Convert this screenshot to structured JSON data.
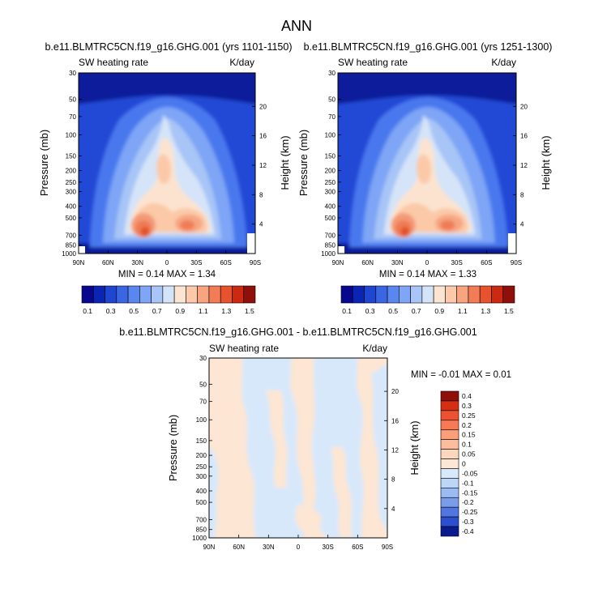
{
  "title": "ANN",
  "panels": [
    {
      "title": "b.e11.BLMTRC5CN.f19_g16.GHG.001 (yrs 1101-1150)",
      "left_label": "SW heating rate",
      "right_label": "K/day",
      "ylabel": "Pressure (mb)",
      "ylabel2": "Height (km)",
      "minmax": "MIN =  0.14  MAX =  1.34"
    },
    {
      "title": "b.e11.BLMTRC5CN.f19_g16.GHG.001 (yrs 1251-1300)",
      "left_label": "SW heating rate",
      "right_label": "K/day",
      "ylabel": "Pressure (mb)",
      "ylabel2": "Height (km)",
      "minmax": "MIN =  0.14  MAX =  1.33"
    },
    {
      "title": "b.e11.BLMTRC5CN.f19_g16.GHG.001 - b.e11.BLMTRC5CN.f19_g16.GHG.001",
      "left_label": "SW heating rate",
      "right_label": "K/day",
      "ylabel": "Pressure (mb)",
      "ylabel2": "Height (km)",
      "minmax": "MIN = -0.01  MAX =  0.01"
    }
  ],
  "chart_data": [
    {
      "type": "heatmap",
      "title": "b.e11.BLMTRC5CN.f19_g16.GHG.001 (yrs 1101-1150)",
      "variable": "SW heating rate",
      "units": "K/day",
      "xlabel": "",
      "ylabel": "Pressure (mb)",
      "ylabel_right": "Height (km)",
      "x_ticks": [
        "90N",
        "60N",
        "30N",
        "0",
        "30S",
        "60S",
        "90S"
      ],
      "x_tick_values": [
        90,
        60,
        30,
        0,
        -30,
        -60,
        -90
      ],
      "y_ticks": [
        30,
        50,
        70,
        100,
        150,
        200,
        250,
        300,
        400,
        500,
        700,
        850,
        1000
      ],
      "y_ticks_right": [
        20,
        16,
        12,
        8,
        4
      ],
      "ylim": [
        30,
        1000
      ],
      "min": 0.14,
      "max": 1.34,
      "colorbar_levels": [
        0.1,
        0.2,
        0.3,
        0.4,
        0.5,
        0.6,
        0.7,
        0.8,
        0.9,
        1.0,
        1.1,
        1.2,
        1.3,
        1.4,
        1.5
      ],
      "colorbar_labels": [
        "0.1",
        "0.3",
        "0.5",
        "0.7",
        "0.9",
        "1.1",
        "1.3",
        "1.5"
      ]
    },
    {
      "type": "heatmap",
      "title": "b.e11.BLMTRC5CN.f19_g16.GHG.001 (yrs 1251-1300)",
      "variable": "SW heating rate",
      "units": "K/day",
      "xlabel": "",
      "ylabel": "Pressure (mb)",
      "ylabel_right": "Height (km)",
      "x_ticks": [
        "90N",
        "60N",
        "30N",
        "0",
        "30S",
        "60S",
        "90S"
      ],
      "x_tick_values": [
        90,
        60,
        30,
        0,
        -30,
        -60,
        -90
      ],
      "y_ticks": [
        30,
        50,
        70,
        100,
        150,
        200,
        250,
        300,
        400,
        500,
        700,
        850,
        1000
      ],
      "y_ticks_right": [
        20,
        16,
        12,
        8,
        4
      ],
      "ylim": [
        30,
        1000
      ],
      "min": 0.14,
      "max": 1.33,
      "colorbar_levels": [
        0.1,
        0.2,
        0.3,
        0.4,
        0.5,
        0.6,
        0.7,
        0.8,
        0.9,
        1.0,
        1.1,
        1.2,
        1.3,
        1.4,
        1.5
      ],
      "colorbar_labels": [
        "0.1",
        "0.3",
        "0.5",
        "0.7",
        "0.9",
        "1.1",
        "1.3",
        "1.5"
      ]
    },
    {
      "type": "heatmap",
      "title": "b.e11.BLMTRC5CN.f19_g16.GHG.001 - b.e11.BLMTRC5CN.f19_g16.GHG.001",
      "variable": "SW heating rate",
      "units": "K/day",
      "xlabel": "",
      "ylabel": "Pressure (mb)",
      "ylabel_right": "Height (km)",
      "x_ticks": [
        "90N",
        "60N",
        "30N",
        "0",
        "30S",
        "60S",
        "90S"
      ],
      "x_tick_values": [
        90,
        60,
        30,
        0,
        -30,
        -60,
        -90
      ],
      "y_ticks": [
        30,
        50,
        70,
        100,
        150,
        200,
        250,
        300,
        400,
        500,
        700,
        850,
        1000
      ],
      "y_ticks_right": [
        20,
        16,
        12,
        8,
        4
      ],
      "ylim": [
        30,
        1000
      ],
      "min": -0.01,
      "max": 0.01,
      "colorbar_levels": [
        0.4,
        0.3,
        0.25,
        0.2,
        0.15,
        0.1,
        0.05,
        0,
        -0.05,
        -0.1,
        -0.15,
        -0.2,
        -0.25,
        -0.3,
        -0.4
      ],
      "colorbar_labels": [
        "0.4",
        "0.3",
        "0.25",
        "0.2",
        "0.15",
        "0.1",
        "0.05",
        "0",
        "-0.05",
        "-0.1",
        "-0.15",
        "-0.2",
        "-0.25",
        "-0.3",
        "-0.4"
      ]
    }
  ],
  "palettes": {
    "seq": [
      "#08088e",
      "#0a24b4",
      "#1f45d1",
      "#3a66e4",
      "#5a86f0",
      "#7fa5f6",
      "#a9c5f7",
      "#d3e3f8",
      "#fce4d0",
      "#fcc9aa",
      "#f8a480",
      "#f27c55",
      "#e8522e",
      "#cc2a10",
      "#8f0f0a"
    ],
    "div": [
      "#8f0f0a",
      "#d42e13",
      "#ed5230",
      "#f57a55",
      "#f99f7a",
      "#fbbd9d",
      "#fcd7bd",
      "#fde7d4",
      "#d8e9fb",
      "#bcd6f7",
      "#9bbcf2",
      "#7a9de9",
      "#5276df",
      "#2b4fcf",
      "#0a1a8f"
    ]
  }
}
